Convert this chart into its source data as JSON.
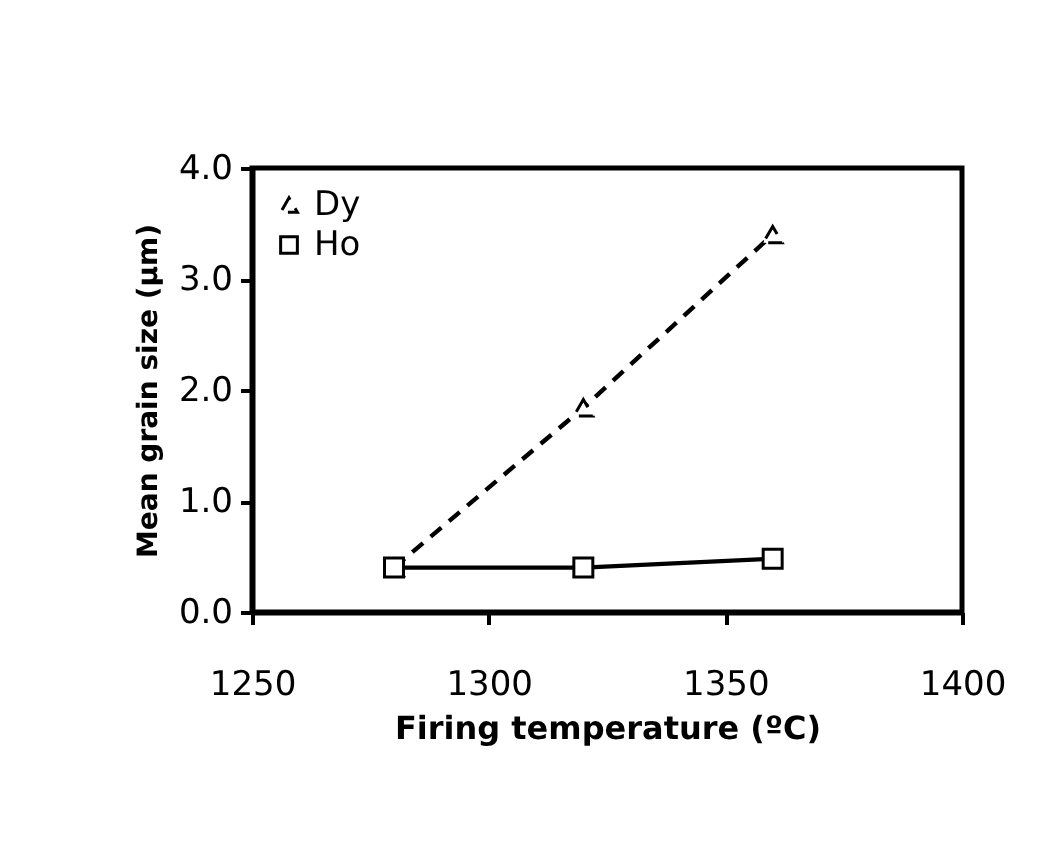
{
  "chart_data": {
    "type": "line",
    "xlabel": "Firing temperature (ºC)",
    "ylabel": "Mean grain size (µm)",
    "x": [
      1280,
      1320,
      1360
    ],
    "series": [
      {
        "name": "Dy",
        "color": "#000000",
        "values": [
          0.4,
          1.84,
          3.4
        ],
        "marker": "triangle",
        "line_style": "dashed"
      },
      {
        "name": "Ho",
        "color": "#000000",
        "values": [
          0.4,
          0.4,
          0.48
        ],
        "marker": "square",
        "line_style": "solid"
      }
    ],
    "xlim": [
      1250,
      1400
    ],
    "xticks": [
      1250,
      1300,
      1350,
      1400
    ],
    "ylim": [
      0,
      4
    ],
    "yticks": [
      {
        "value": 0,
        "label": "0.0"
      },
      {
        "value": 1,
        "label": "1.0"
      },
      {
        "value": 2,
        "label": "2.0"
      },
      {
        "value": 3,
        "label": "3.0"
      },
      {
        "value": 4,
        "label": "4.0"
      }
    ],
    "legend": "top left",
    "grid": false
  }
}
